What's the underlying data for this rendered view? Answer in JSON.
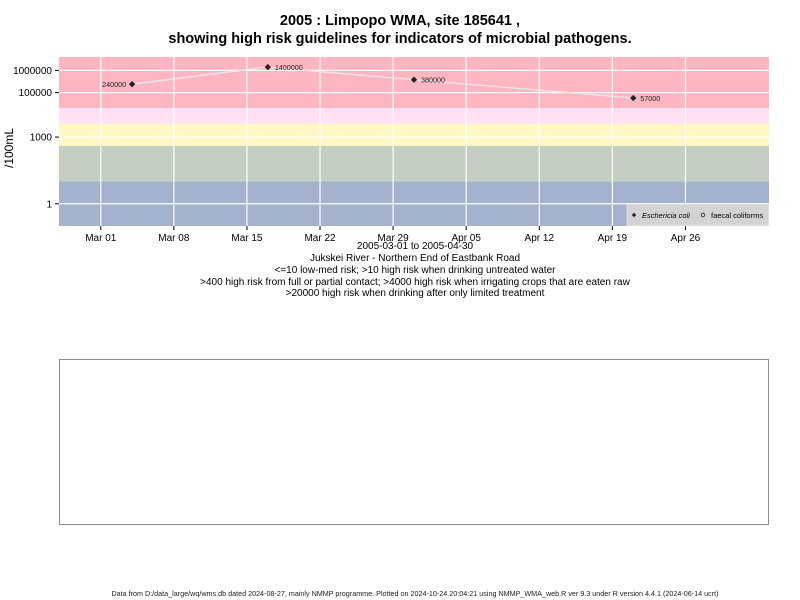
{
  "header": {
    "title_line1": "2005 : Limpopo WMA, site 185641 ,",
    "title_line2": "showing high risk guidelines for indicators of microbial pathogens."
  },
  "caption": {
    "date_range": "2005-03-01 to 2005-04-30",
    "site": "Jukskei River - Northern End of Eastbank Road",
    "line1": "<=10 low-med risk; >10 high risk when drinking untreated water",
    "line2": ">400 high risk from full or partial contact; >4000 high risk when irrigating crops that are eaten raw",
    "line3": ">20000 high risk when drinking after only limited treatment"
  },
  "footer": {
    "text": "Data from D:/data_large/wq/wms.db dated 2024-08-27, mainly NMMP programme. Plotted on 2024-10-24 20:04:21 using NMMP_WMA_web.R ver 9.3 under R version 4.4.1 (2024-06-14 ucrt)"
  },
  "chart_data": {
    "type": "scatter",
    "ylabel": "/100mL",
    "y_scale": "log",
    "ylim": [
      0.1,
      4000000
    ],
    "xlim": [
      "2005-02-25",
      "2005-05-04"
    ],
    "y_ticks": [
      {
        "value": 1,
        "label": "1"
      },
      {
        "value": 1000,
        "label": "1000"
      },
      {
        "value": 100000,
        "label": "100000"
      },
      {
        "value": 1000000,
        "label": "1000000"
      }
    ],
    "x_ticks": [
      {
        "date": "2005-03-01",
        "label": "Mar 01"
      },
      {
        "date": "2005-03-08",
        "label": "Mar 08"
      },
      {
        "date": "2005-03-15",
        "label": "Mar 15"
      },
      {
        "date": "2005-03-22",
        "label": "Mar 22"
      },
      {
        "date": "2005-03-29",
        "label": "Mar 29"
      },
      {
        "date": "2005-04-05",
        "label": "Apr 05"
      },
      {
        "date": "2005-04-12",
        "label": "Apr 12"
      },
      {
        "date": "2005-04-19",
        "label": "Apr 19"
      },
      {
        "date": "2005-04-26",
        "label": "Apr 26"
      }
    ],
    "risk_bands": [
      {
        "from": 20000,
        "to": 4000000,
        "color": "#ffb6c1"
      },
      {
        "from": 4000,
        "to": 20000,
        "color": "#ffe0f4"
      },
      {
        "from": 400,
        "to": 4000,
        "color": "#fff8c4"
      },
      {
        "from": 10,
        "to": 400,
        "color": "#c4cfc2"
      },
      {
        "from": 0.1,
        "to": 10,
        "color": "#a3b3cd"
      }
    ],
    "series": [
      {
        "name": "Eschericia coli",
        "marker": "diamond",
        "color": "#222222",
        "points": [
          {
            "x": "2005-03-04",
            "y": 240000,
            "label": "240000"
          },
          {
            "x": "2005-03-17",
            "y": 1400000,
            "label": "1400000"
          },
          {
            "x": "2005-03-31",
            "y": 380000,
            "label": "380000"
          },
          {
            "x": "2005-04-21",
            "y": 57000,
            "label": "57000"
          }
        ]
      },
      {
        "name": "faecal coliforms",
        "marker": "circle",
        "color": "#222222",
        "points": []
      }
    ],
    "grid": true,
    "legend_position": "bottom-right"
  }
}
